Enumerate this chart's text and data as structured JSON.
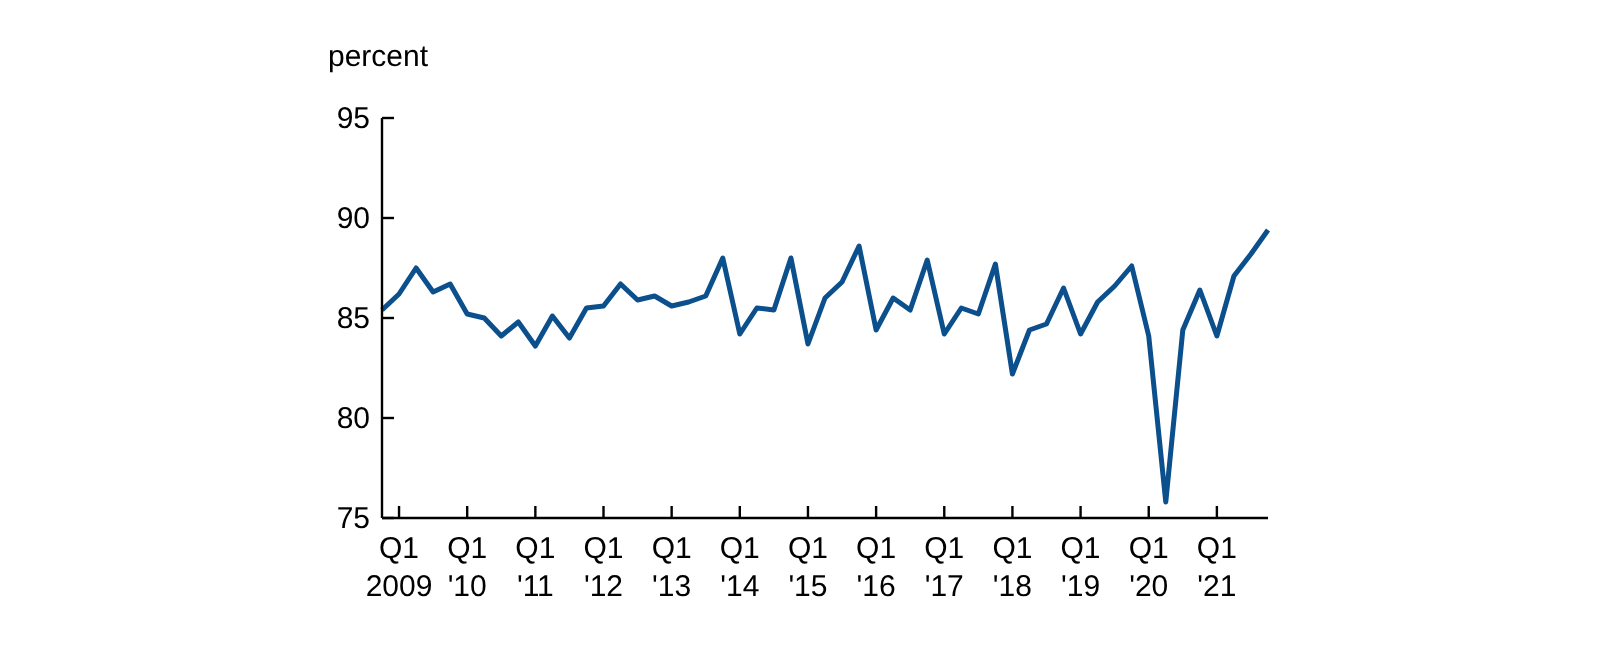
{
  "chart_data": {
    "type": "line",
    "ylabel": "percent",
    "categories": [
      null,
      "Q1\n2009",
      null,
      null,
      null,
      "Q1\n'10",
      null,
      null,
      null,
      "Q1\n'11",
      null,
      null,
      null,
      "Q1\n'12",
      null,
      null,
      null,
      "Q1\n'13",
      null,
      null,
      null,
      "Q1\n'14",
      null,
      null,
      null,
      "Q1\n'15",
      null,
      null,
      null,
      "Q1\n'16",
      null,
      null,
      null,
      "Q1\n'17",
      null,
      null,
      null,
      "Q1\n'18",
      null,
      null,
      null,
      "Q1\n'19",
      null,
      null,
      null,
      "Q1\n'20",
      null,
      null,
      null,
      "Q1\n'21",
      null,
      null,
      null
    ],
    "series": [
      {
        "color": "#0b4f8c",
        "values": [
          85.4,
          86.2,
          87.5,
          86.3,
          86.7,
          85.2,
          85.0,
          84.1,
          84.8,
          83.6,
          85.1,
          84.0,
          85.5,
          85.6,
          86.7,
          85.9,
          86.1,
          85.6,
          85.8,
          86.1,
          88.0,
          84.2,
          85.5,
          85.4,
          88.0,
          83.7,
          86.0,
          86.8,
          88.6,
          84.4,
          86.0,
          85.4,
          87.9,
          84.2,
          85.5,
          85.2,
          87.7,
          82.2,
          84.4,
          84.7,
          86.5,
          84.2,
          85.8,
          86.6,
          87.6,
          84.1,
          75.8,
          84.4,
          86.4,
          84.1,
          87.1,
          88.2,
          89.4
        ]
      }
    ],
    "ylim": [
      75,
      95
    ],
    "yticks": [
      75,
      80,
      85,
      90,
      95
    ],
    "marker": "none",
    "line_style": "solid"
  }
}
